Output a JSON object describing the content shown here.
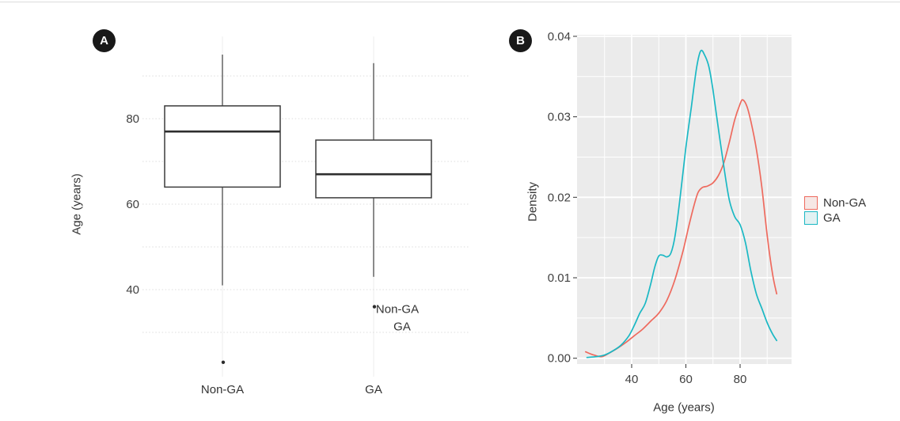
{
  "figure": {
    "panel_a": {
      "badge": "A",
      "ylabel": "Age (years)",
      "annotation_lines": [
        "Non-GA",
        "GA"
      ]
    },
    "panel_b": {
      "badge": "B",
      "xlabel": "Age (years)",
      "ylabel": "Density"
    },
    "legend": {
      "items": [
        {
          "label": "Non-GA",
          "color": "#ee6a5e",
          "fill": "#f6e7e5"
        },
        {
          "label": "GA",
          "color": "#1ab8c4",
          "fill": "#e2f2f3"
        }
      ]
    },
    "colors": {
      "panel_background": "#ebebeb",
      "gridline_white": "#ffffff",
      "gridline_dotted": "#dcdcdc",
      "box_stroke": "#3c3c3c",
      "badge_background": "#191919"
    }
  },
  "chart_data": [
    {
      "type": "box",
      "title": "",
      "categories": [
        "Non-GA",
        "GA"
      ],
      "ylabel": "Age (years)",
      "yticks": [
        40,
        60,
        80
      ],
      "ylim": [
        18,
        98
      ],
      "grid": "dotted-horizontal",
      "series": [
        {
          "name": "Non-GA",
          "whisker_low": 41,
          "q1": 64,
          "median": 77,
          "q3": 83,
          "whisker_high": 95,
          "outliers": [
            23
          ]
        },
        {
          "name": "GA",
          "whisker_low": 43,
          "q1": 61.5,
          "median": 67,
          "q3": 75,
          "whisker_high": 93,
          "outliers": [
            36
          ]
        }
      ],
      "annotations": [
        "Non-GA",
        "GA"
      ]
    },
    {
      "type": "line",
      "subtype": "density",
      "title": "",
      "xlabel": "Age (years)",
      "ylabel": "Density",
      "xticks": [
        40,
        60,
        80
      ],
      "yticks": [
        0.0,
        0.01,
        0.02,
        0.03,
        0.04
      ],
      "xlim": [
        20,
        99
      ],
      "ylim": [
        0,
        0.04
      ],
      "grid": "white-on-gray",
      "legend_position": "right",
      "series": [
        {
          "name": "Non-GA",
          "color": "#ee6a5e",
          "points": [
            [
              23,
              0.0008
            ],
            [
              26,
              0.0004
            ],
            [
              29,
              0.0002
            ],
            [
              32,
              0.0007
            ],
            [
              35,
              0.0013
            ],
            [
              38,
              0.002
            ],
            [
              41,
              0.0028
            ],
            [
              44,
              0.0036
            ],
            [
              47,
              0.0046
            ],
            [
              50,
              0.0056
            ],
            [
              53,
              0.0072
            ],
            [
              56,
              0.0098
            ],
            [
              59,
              0.0134
            ],
            [
              61,
              0.0163
            ],
            [
              63,
              0.019
            ],
            [
              64.5,
              0.0206
            ],
            [
              66,
              0.0212
            ],
            [
              68,
              0.0214
            ],
            [
              70,
              0.0218
            ],
            [
              72,
              0.0227
            ],
            [
              74,
              0.0243
            ],
            [
              76,
              0.0268
            ],
            [
              78,
              0.0296
            ],
            [
              80,
              0.0316
            ],
            [
              81,
              0.0321
            ],
            [
              82.5,
              0.0313
            ],
            [
              84,
              0.0294
            ],
            [
              86,
              0.026
            ],
            [
              88,
              0.0213
            ],
            [
              90,
              0.0152
            ],
            [
              92,
              0.0104
            ],
            [
              93.5,
              0.008
            ]
          ]
        },
        {
          "name": "GA",
          "color": "#1ab8c4",
          "points": [
            [
              23.5,
              0.0001
            ],
            [
              27,
              0.0002
            ],
            [
              30,
              0.0004
            ],
            [
              33,
              0.0009
            ],
            [
              36,
              0.0016
            ],
            [
              39,
              0.0028
            ],
            [
              41,
              0.0041
            ],
            [
              43,
              0.0056
            ],
            [
              45,
              0.0068
            ],
            [
              47,
              0.0092
            ],
            [
              48.5,
              0.0113
            ],
            [
              50,
              0.0127
            ],
            [
              51.5,
              0.0128
            ],
            [
              53,
              0.0126
            ],
            [
              54.5,
              0.0131
            ],
            [
              56,
              0.0152
            ],
            [
              58,
              0.0203
            ],
            [
              60,
              0.0262
            ],
            [
              62,
              0.0312
            ],
            [
              64,
              0.0362
            ],
            [
              65.5,
              0.0382
            ],
            [
              67,
              0.0376
            ],
            [
              68.5,
              0.0362
            ],
            [
              70,
              0.0333
            ],
            [
              72,
              0.0285
            ],
            [
              74,
              0.0238
            ],
            [
              76,
              0.0197
            ],
            [
              78,
              0.0176
            ],
            [
              80,
              0.0166
            ],
            [
              82,
              0.0143
            ],
            [
              84,
              0.0108
            ],
            [
              86,
              0.008
            ],
            [
              88,
              0.0062
            ],
            [
              90,
              0.0044
            ],
            [
              92,
              0.003
            ],
            [
              93.5,
              0.0022
            ]
          ]
        }
      ]
    }
  ]
}
